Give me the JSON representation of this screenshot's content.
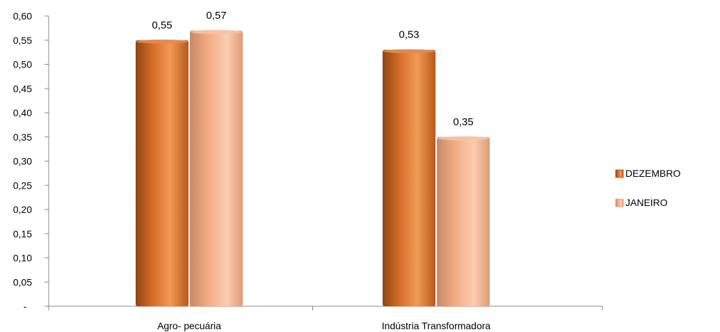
{
  "chart_data": {
    "type": "bar",
    "categories": [
      "Agro- pecuária",
      "Indústria Transformadora"
    ],
    "series": [
      {
        "name": "DEZEMBRO",
        "values": [
          0.55,
          0.53
        ],
        "labels": [
          "0,55",
          "0,53"
        ],
        "color": "#E07B39"
      },
      {
        "name": "JANEIRO",
        "values": [
          0.57,
          0.35
        ],
        "labels": [
          "0,57",
          "0,35"
        ],
        "color": "#F7B48E"
      }
    ],
    "ylim": [
      0,
      0.6
    ],
    "yticks": [
      {
        "value": 0,
        "label": "-"
      },
      {
        "value": 0.05,
        "label": "0,05"
      },
      {
        "value": 0.1,
        "label": "0,10"
      },
      {
        "value": 0.15,
        "label": "0,15"
      },
      {
        "value": 0.2,
        "label": "0,20"
      },
      {
        "value": 0.25,
        "label": "0,25"
      },
      {
        "value": 0.3,
        "label": "0,30"
      },
      {
        "value": 0.35,
        "label": "0,35"
      },
      {
        "value": 0.4,
        "label": "0,40"
      },
      {
        "value": 0.45,
        "label": "0,45"
      },
      {
        "value": 0.5,
        "label": "0,50"
      },
      {
        "value": 0.55,
        "label": "0,55"
      },
      {
        "value": 0.6,
        "label": "0,60"
      }
    ],
    "grid": false,
    "legend_position": "right"
  }
}
